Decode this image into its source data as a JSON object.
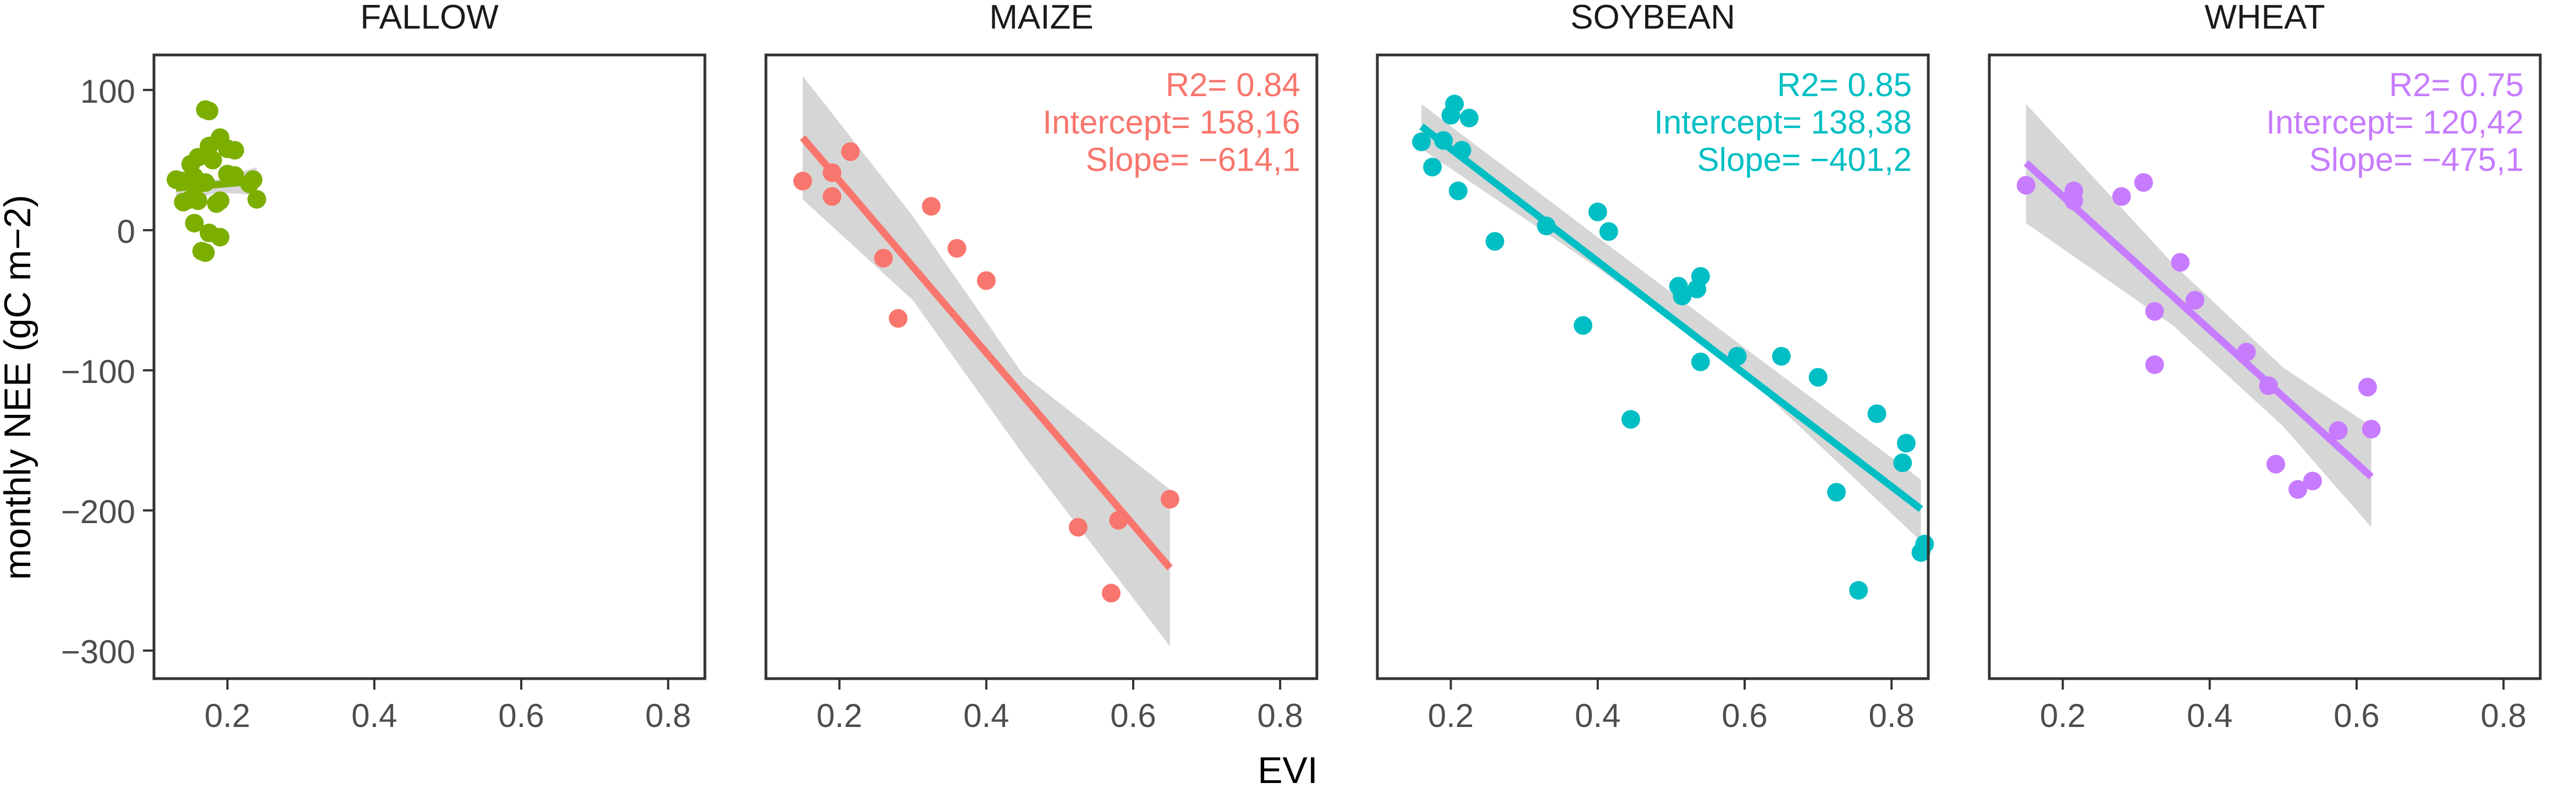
{
  "chart_data": {
    "type": "scatter",
    "xlabel": "EVI",
    "ylabel": "monthly NEE (gC m−2)",
    "xlim": [
      0.1,
      0.85
    ],
    "ylim": [
      -320,
      125
    ],
    "x_ticks": [
      "0.2",
      "0.4",
      "0.6",
      "0.8"
    ],
    "x_tick_values": [
      0.2,
      0.4,
      0.6,
      0.8
    ],
    "y_ticks": [
      "100",
      "0",
      "−100",
      "−200",
      "−300"
    ],
    "y_tick_values": [
      100,
      0,
      -100,
      -200,
      -300
    ],
    "panels": [
      {
        "title": "FALLOW",
        "color": "#7cae00",
        "stats": null,
        "fit": {
          "x": [
            0.13,
            0.24
          ],
          "y": [
            30,
            35
          ]
        },
        "band": {
          "x": [
            0.13,
            0.185,
            0.24
          ],
          "upper": [
            43,
            36,
            45
          ],
          "lower": [
            17,
            27,
            25
          ]
        },
        "points": [
          {
            "x": 0.17,
            "y": 86
          },
          {
            "x": 0.175,
            "y": 85
          },
          {
            "x": 0.19,
            "y": 66
          },
          {
            "x": 0.2,
            "y": 58
          },
          {
            "x": 0.16,
            "y": 52
          },
          {
            "x": 0.15,
            "y": 47
          },
          {
            "x": 0.18,
            "y": 50
          },
          {
            "x": 0.21,
            "y": 57
          },
          {
            "x": 0.175,
            "y": 60
          },
          {
            "x": 0.13,
            "y": 36
          },
          {
            "x": 0.14,
            "y": 35
          },
          {
            "x": 0.155,
            "y": 38
          },
          {
            "x": 0.16,
            "y": 33
          },
          {
            "x": 0.17,
            "y": 34
          },
          {
            "x": 0.2,
            "y": 40
          },
          {
            "x": 0.21,
            "y": 39
          },
          {
            "x": 0.23,
            "y": 33
          },
          {
            "x": 0.235,
            "y": 36
          },
          {
            "x": 0.24,
            "y": 22
          },
          {
            "x": 0.15,
            "y": 22
          },
          {
            "x": 0.16,
            "y": 21
          },
          {
            "x": 0.185,
            "y": 19
          },
          {
            "x": 0.19,
            "y": 21
          },
          {
            "x": 0.14,
            "y": 20
          },
          {
            "x": 0.155,
            "y": 5
          },
          {
            "x": 0.175,
            "y": -2
          },
          {
            "x": 0.19,
            "y": -5
          },
          {
            "x": 0.17,
            "y": -16
          },
          {
            "x": 0.165,
            "y": -15
          }
        ]
      },
      {
        "title": "MAIZE",
        "color": "#f8766d",
        "stats": [
          "R2= 0.84",
          "Intercept= 158,16",
          "Slope= −614,1"
        ],
        "fit": {
          "x": [
            0.15,
            0.65
          ],
          "y": [
            66,
            -241
          ]
        },
        "band": {
          "x": [
            0.15,
            0.3,
            0.45,
            0.65
          ],
          "upper": [
            110,
            10,
            -103,
            -185
          ],
          "lower": [
            22,
            -50,
            -160,
            -297
          ]
        },
        "points": [
          {
            "x": 0.15,
            "y": 35
          },
          {
            "x": 0.19,
            "y": 41
          },
          {
            "x": 0.19,
            "y": 24
          },
          {
            "x": 0.215,
            "y": 56
          },
          {
            "x": 0.26,
            "y": -20
          },
          {
            "x": 0.28,
            "y": -63
          },
          {
            "x": 0.325,
            "y": 17
          },
          {
            "x": 0.36,
            "y": -13
          },
          {
            "x": 0.4,
            "y": -36
          },
          {
            "x": 0.525,
            "y": -212
          },
          {
            "x": 0.57,
            "y": -259
          },
          {
            "x": 0.58,
            "y": -207
          },
          {
            "x": 0.65,
            "y": -192
          }
        ]
      },
      {
        "title": "SOYBEAN",
        "color": "#00bfc4",
        "stats": [
          "R2= 0.85",
          "Intercept= 138,38",
          "Slope= −401,2"
        ],
        "fit": {
          "x": [
            0.16,
            0.84
          ],
          "y": [
            74,
            -199
          ]
        },
        "band": {
          "x": [
            0.16,
            0.4,
            0.6,
            0.84
          ],
          "upper": [
            90,
            -5,
            -84,
            -178
          ],
          "lower": [
            58,
            -27,
            -103,
            -222
          ]
        },
        "points": [
          {
            "x": 0.16,
            "y": 63
          },
          {
            "x": 0.175,
            "y": 45
          },
          {
            "x": 0.19,
            "y": 64
          },
          {
            "x": 0.2,
            "y": 82
          },
          {
            "x": 0.205,
            "y": 90
          },
          {
            "x": 0.21,
            "y": 28
          },
          {
            "x": 0.215,
            "y": 57
          },
          {
            "x": 0.225,
            "y": 80
          },
          {
            "x": 0.26,
            "y": -8
          },
          {
            "x": 0.33,
            "y": 3
          },
          {
            "x": 0.38,
            "y": -68
          },
          {
            "x": 0.4,
            "y": 13
          },
          {
            "x": 0.415,
            "y": -1
          },
          {
            "x": 0.445,
            "y": -135
          },
          {
            "x": 0.51,
            "y": -40
          },
          {
            "x": 0.515,
            "y": -47
          },
          {
            "x": 0.535,
            "y": -42
          },
          {
            "x": 0.54,
            "y": -33
          },
          {
            "x": 0.54,
            "y": -94
          },
          {
            "x": 0.59,
            "y": -90
          },
          {
            "x": 0.65,
            "y": -90
          },
          {
            "x": 0.7,
            "y": -105
          },
          {
            "x": 0.725,
            "y": -187
          },
          {
            "x": 0.755,
            "y": -257
          },
          {
            "x": 0.78,
            "y": -131
          },
          {
            "x": 0.815,
            "y": -166
          },
          {
            "x": 0.82,
            "y": -152
          },
          {
            "x": 0.84,
            "y": -230
          },
          {
            "x": 0.845,
            "y": -224
          }
        ]
      },
      {
        "title": "WHEAT",
        "color": "#c77cff",
        "stats": [
          "R2= 0.75",
          "Intercept= 120,42",
          "Slope= −475,1"
        ],
        "fit": {
          "x": [
            0.15,
            0.62
          ],
          "y": [
            48,
            -176
          ]
        },
        "band": {
          "x": [
            0.15,
            0.35,
            0.5,
            0.62
          ],
          "upper": [
            90,
            -24,
            -98,
            -140
          ],
          "lower": [
            5,
            -68,
            -140,
            -212
          ]
        },
        "points": [
          {
            "x": 0.15,
            "y": 32
          },
          {
            "x": 0.215,
            "y": 28
          },
          {
            "x": 0.215,
            "y": 21
          },
          {
            "x": 0.28,
            "y": 24
          },
          {
            "x": 0.31,
            "y": 34
          },
          {
            "x": 0.325,
            "y": -58
          },
          {
            "x": 0.325,
            "y": -96
          },
          {
            "x": 0.36,
            "y": -23
          },
          {
            "x": 0.38,
            "y": -50
          },
          {
            "x": 0.45,
            "y": -87
          },
          {
            "x": 0.48,
            "y": -111
          },
          {
            "x": 0.49,
            "y": -167
          },
          {
            "x": 0.52,
            "y": -185
          },
          {
            "x": 0.54,
            "y": -179
          },
          {
            "x": 0.575,
            "y": -143
          },
          {
            "x": 0.615,
            "y": -112
          },
          {
            "x": 0.62,
            "y": -142
          }
        ]
      }
    ]
  }
}
